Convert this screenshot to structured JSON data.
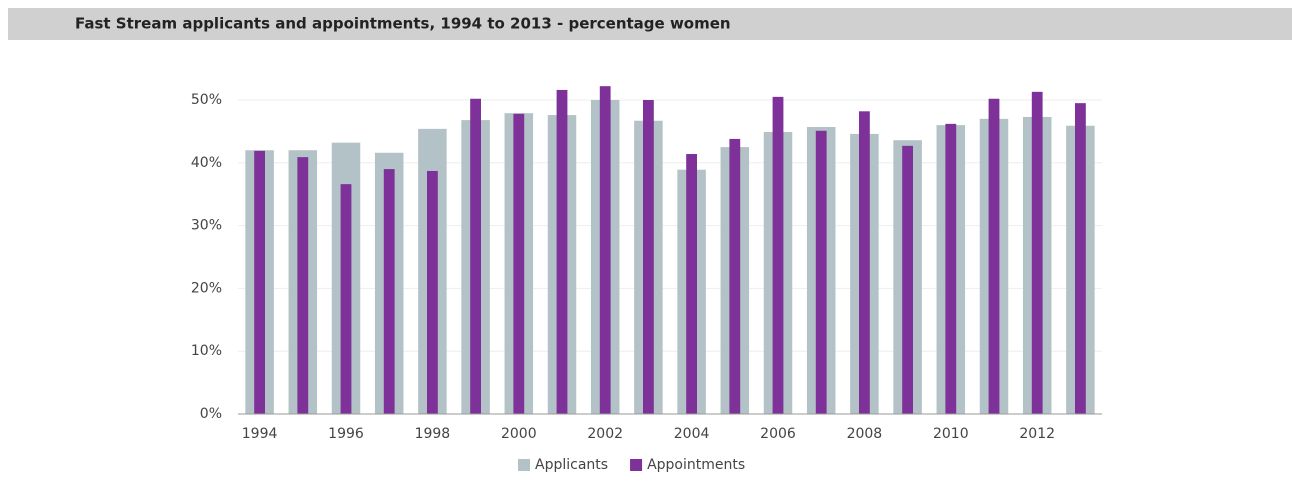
{
  "chart_data": {
    "type": "bar",
    "title": "Fast Stream applicants and appointments, 1994 to 2013 - percentage women",
    "categories": [
      "1994",
      null,
      "1996",
      null,
      "1998",
      null,
      "2000",
      null,
      "2002",
      null,
      "2004",
      null,
      "2006",
      null,
      "2008",
      null,
      "2010",
      null,
      "2012",
      null
    ],
    "series": [
      {
        "name": "Applicants",
        "color": "#b3c2c6",
        "values": [
          42.0,
          42.0,
          43.2,
          41.6,
          45.4,
          46.8,
          47.9,
          47.6,
          50.0,
          46.7,
          38.9,
          42.5,
          44.9,
          45.7,
          44.6,
          43.6,
          46.0,
          47.0,
          47.3,
          45.9
        ]
      },
      {
        "name": "Appointments",
        "color": "#7d3199",
        "values": [
          41.9,
          40.9,
          36.6,
          39.0,
          38.7,
          50.2,
          47.8,
          51.6,
          52.2,
          50.0,
          41.4,
          43.8,
          50.5,
          45.1,
          48.2,
          42.7,
          46.2,
          50.2,
          51.3,
          49.5
        ]
      }
    ],
    "ylim": [
      0,
      50
    ],
    "yticks": [
      {
        "value": 0,
        "label": "0%"
      },
      {
        "value": 10,
        "label": "10%"
      },
      {
        "value": 20,
        "label": "20%"
      },
      {
        "value": 30,
        "label": "30%"
      },
      {
        "value": 40,
        "label": "40%"
      },
      {
        "value": 50,
        "label": "50%"
      }
    ],
    "grid": true,
    "legend": "bottom"
  }
}
